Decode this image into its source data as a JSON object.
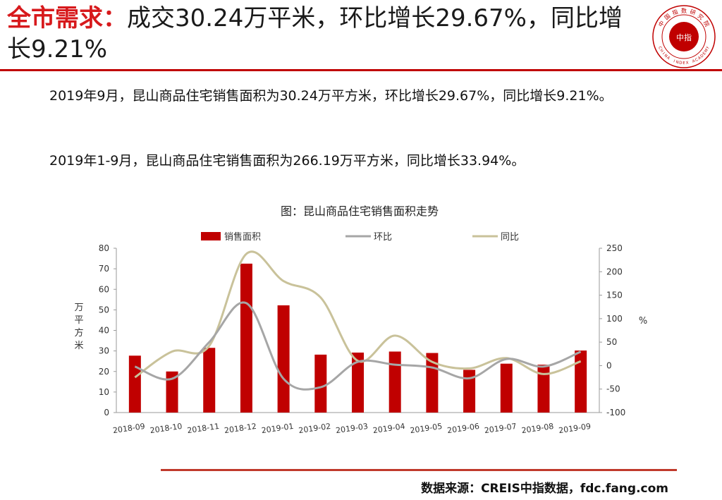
{
  "title": {
    "key": "全市需求",
    "separator": "：",
    "body": "成交30.24万平米，环比增长29.67%，同比增长9.21%"
  },
  "logo": {
    "top_text": "中国指数研究院",
    "center_text": "中指",
    "bottom_text": "CHINA INDEX ACADEMY",
    "color": "#c00000"
  },
  "paragraphs": {
    "p1": "2019年9月，昆山商品住宅销售面积为30.24万平方米，环比增长29.67%，同比增长9.21%。",
    "p2": "2019年1-9月，昆山商品住宅销售面积为266.19万平方米，同比增长33.94%。"
  },
  "chart_data": {
    "type": "bar",
    "title": "图：昆山商品住宅销售面积走势",
    "categories": [
      "2018-09",
      "2018-10",
      "2018-11",
      "2018-12",
      "2019-01",
      "2019-02",
      "2019-03",
      "2019-04",
      "2019-05",
      "2019-06",
      "2019-07",
      "2019-08",
      "2019-09"
    ],
    "ylabel_left": "万平方米",
    "ylabel_right": "%",
    "ylim_left": [
      0,
      80
    ],
    "ylim_right": [
      -100,
      250
    ],
    "yticks_left": [
      0,
      10,
      20,
      30,
      40,
      50,
      60,
      70,
      80
    ],
    "yticks_right": [
      -100,
      -50,
      0,
      50,
      100,
      150,
      200,
      250
    ],
    "legend_position": "top",
    "series": [
      {
        "name": "销售面积",
        "type": "bar",
        "axis": "left",
        "color": "#c00000",
        "values": [
          27.7,
          20.0,
          31.5,
          72.5,
          52.2,
          28.2,
          29.2,
          29.7,
          29.0,
          20.8,
          23.8,
          23.3,
          30.2
        ]
      },
      {
        "name": "环比",
        "type": "line",
        "axis": "right",
        "color": "#a6a6a6",
        "values": [
          -2,
          -28,
          50,
          133,
          -28,
          -46,
          8,
          2,
          -4,
          -27,
          14,
          -2,
          29.67
        ]
      },
      {
        "name": "同比",
        "type": "line",
        "axis": "right",
        "color": "#c9c29a",
        "values": [
          -25,
          30,
          42,
          238,
          180,
          145,
          10,
          64,
          8,
          -6,
          16,
          -18,
          9.21
        ]
      }
    ]
  },
  "source": "数据来源：CREIS中指数据，fdc.fang.com"
}
